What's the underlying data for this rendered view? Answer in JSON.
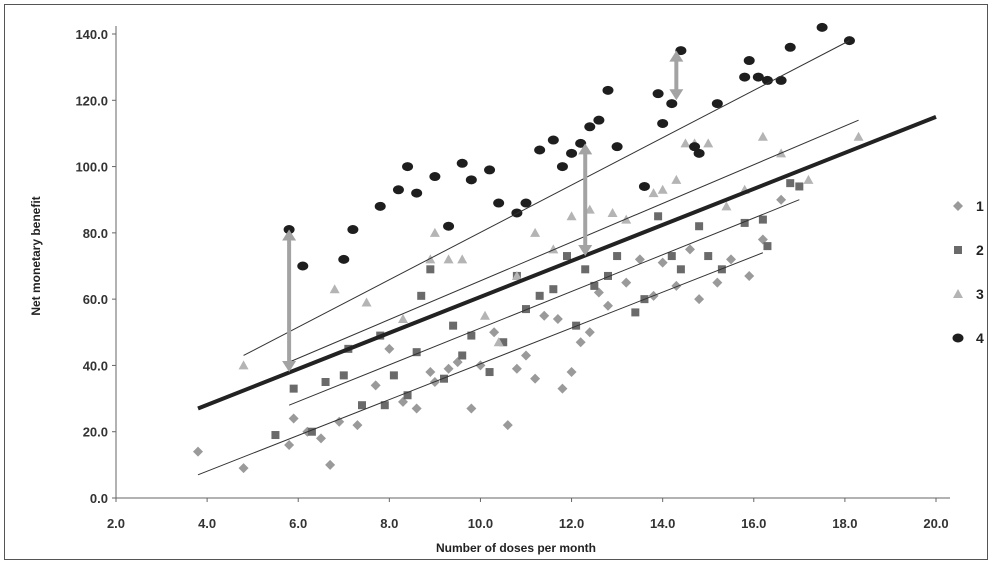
{
  "chart_data": {
    "type": "scatter",
    "title": "",
    "xlabel": "Number of doses per month",
    "ylabel": "Net monetary benefit",
    "xlim": [
      2.0,
      20.0
    ],
    "ylim": [
      0.0,
      140.0
    ],
    "xticks": [
      "2.0",
      "4.0",
      "6.0",
      "8.0",
      "10.0",
      "12.0",
      "14.0",
      "16.0",
      "18.0",
      "20.0"
    ],
    "yticks": [
      "0.0",
      "20.0",
      "40.0",
      "60.0",
      "80.0",
      "100.0",
      "120.0",
      "140.0"
    ],
    "grid": false,
    "legend_position": "right",
    "series": [
      {
        "name": "1",
        "marker": "diamond",
        "color": "#9a9a9a",
        "points": [
          [
            3.8,
            14
          ],
          [
            4.8,
            9
          ],
          [
            5.8,
            16
          ],
          [
            5.9,
            24
          ],
          [
            6.2,
            20
          ],
          [
            6.5,
            18
          ],
          [
            6.7,
            10
          ],
          [
            6.9,
            23
          ],
          [
            7.3,
            22
          ],
          [
            7.7,
            34
          ],
          [
            8.0,
            45
          ],
          [
            8.3,
            29
          ],
          [
            8.6,
            27
          ],
          [
            8.9,
            38
          ],
          [
            9.0,
            35
          ],
          [
            9.3,
            39
          ],
          [
            9.5,
            41
          ],
          [
            9.8,
            27
          ],
          [
            10.0,
            40
          ],
          [
            10.3,
            50
          ],
          [
            10.6,
            22
          ],
          [
            10.8,
            39
          ],
          [
            11.0,
            43
          ],
          [
            11.2,
            36
          ],
          [
            11.4,
            55
          ],
          [
            11.7,
            54
          ],
          [
            11.8,
            33
          ],
          [
            12.0,
            38
          ],
          [
            12.2,
            47
          ],
          [
            12.4,
            50
          ],
          [
            12.6,
            62
          ],
          [
            12.8,
            58
          ],
          [
            13.2,
            65
          ],
          [
            13.5,
            72
          ],
          [
            13.8,
            61
          ],
          [
            14.0,
            71
          ],
          [
            14.3,
            64
          ],
          [
            14.6,
            75
          ],
          [
            14.8,
            60
          ],
          [
            15.2,
            65
          ],
          [
            15.5,
            72
          ],
          [
            15.9,
            67
          ],
          [
            16.2,
            78
          ],
          [
            16.6,
            90
          ]
        ]
      },
      {
        "name": "2",
        "marker": "square",
        "color": "#6a6a6a",
        "points": [
          [
            5.5,
            19
          ],
          [
            5.9,
            33
          ],
          [
            6.3,
            20
          ],
          [
            6.6,
            35
          ],
          [
            7.0,
            37
          ],
          [
            7.1,
            45
          ],
          [
            7.4,
            28
          ],
          [
            7.8,
            49
          ],
          [
            7.9,
            28
          ],
          [
            8.1,
            37
          ],
          [
            8.4,
            31
          ],
          [
            8.6,
            44
          ],
          [
            8.7,
            61
          ],
          [
            8.9,
            69
          ],
          [
            9.2,
            36
          ],
          [
            9.4,
            52
          ],
          [
            9.6,
            43
          ],
          [
            9.8,
            49
          ],
          [
            10.2,
            38
          ],
          [
            10.5,
            47
          ],
          [
            10.8,
            67
          ],
          [
            11.0,
            57
          ],
          [
            11.3,
            61
          ],
          [
            11.6,
            63
          ],
          [
            11.9,
            73
          ],
          [
            12.1,
            52
          ],
          [
            12.3,
            69
          ],
          [
            12.5,
            64
          ],
          [
            12.8,
            67
          ],
          [
            13.0,
            73
          ],
          [
            13.4,
            56
          ],
          [
            13.6,
            60
          ],
          [
            13.9,
            85
          ],
          [
            14.2,
            73
          ],
          [
            14.4,
            69
          ],
          [
            14.8,
            82
          ],
          [
            15.0,
            73
          ],
          [
            15.3,
            69
          ],
          [
            15.8,
            83
          ],
          [
            16.2,
            84
          ],
          [
            16.3,
            76
          ],
          [
            16.8,
            95
          ],
          [
            17.0,
            94
          ]
        ]
      },
      {
        "name": "3",
        "marker": "triangle",
        "color": "#b4b4b4",
        "points": [
          [
            4.8,
            40
          ],
          [
            6.8,
            63
          ],
          [
            7.5,
            59
          ],
          [
            8.3,
            54
          ],
          [
            8.9,
            72
          ],
          [
            9.0,
            80
          ],
          [
            9.3,
            72
          ],
          [
            9.6,
            72
          ],
          [
            10.1,
            55
          ],
          [
            10.4,
            47
          ],
          [
            10.8,
            67
          ],
          [
            11.2,
            80
          ],
          [
            11.6,
            75
          ],
          [
            12.0,
            85
          ],
          [
            12.4,
            87
          ],
          [
            12.9,
            86
          ],
          [
            13.2,
            84
          ],
          [
            13.8,
            92
          ],
          [
            14.0,
            93
          ],
          [
            14.3,
            96
          ],
          [
            14.5,
            107
          ],
          [
            14.7,
            107
          ],
          [
            15.0,
            107
          ],
          [
            15.4,
            88
          ],
          [
            15.8,
            93
          ],
          [
            16.2,
            109
          ],
          [
            16.6,
            104
          ],
          [
            17.2,
            96
          ],
          [
            18.3,
            109
          ]
        ]
      },
      {
        "name": "4",
        "marker": "circle",
        "color": "#1e1e1e",
        "points": [
          [
            5.8,
            81
          ],
          [
            6.1,
            70
          ],
          [
            7.0,
            72
          ],
          [
            7.2,
            81
          ],
          [
            7.8,
            88
          ],
          [
            8.2,
            93
          ],
          [
            8.4,
            100
          ],
          [
            8.6,
            92
          ],
          [
            9.0,
            97
          ],
          [
            9.3,
            82
          ],
          [
            9.6,
            101
          ],
          [
            9.8,
            96
          ],
          [
            10.2,
            99
          ],
          [
            10.4,
            89
          ],
          [
            10.8,
            86
          ],
          [
            11.0,
            89
          ],
          [
            11.3,
            105
          ],
          [
            11.6,
            108
          ],
          [
            11.8,
            100
          ],
          [
            12.0,
            104
          ],
          [
            12.2,
            107
          ],
          [
            12.4,
            112
          ],
          [
            12.6,
            114
          ],
          [
            12.8,
            123
          ],
          [
            13.0,
            106
          ],
          [
            13.6,
            94
          ],
          [
            13.9,
            122
          ],
          [
            14.0,
            113
          ],
          [
            14.2,
            119
          ],
          [
            14.4,
            135
          ],
          [
            14.7,
            106
          ],
          [
            14.8,
            104
          ],
          [
            15.2,
            119
          ],
          [
            15.8,
            127
          ],
          [
            15.9,
            132
          ],
          [
            16.1,
            127
          ],
          [
            16.3,
            126
          ],
          [
            16.6,
            126
          ],
          [
            16.8,
            136
          ],
          [
            17.5,
            142
          ],
          [
            18.1,
            138
          ]
        ]
      }
    ],
    "fit_lines": [
      {
        "name": "overall",
        "weight": "bold",
        "from": [
          3.8,
          27
        ],
        "to": [
          20.0,
          115
        ]
      },
      {
        "name": "4",
        "weight": "thin",
        "from": [
          4.8,
          43
        ],
        "to": [
          18.1,
          138
        ]
      },
      {
        "name": "3",
        "weight": "thin",
        "from": [
          5.8,
          41
        ],
        "to": [
          18.3,
          114
        ]
      },
      {
        "name": "2",
        "weight": "thin",
        "from": [
          5.8,
          28
        ],
        "to": [
          17.0,
          90
        ]
      },
      {
        "name": "1",
        "weight": "thin",
        "from": [
          3.8,
          7
        ],
        "to": [
          16.2,
          74
        ]
      }
    ],
    "arrows": [
      {
        "x": 5.8,
        "y_from": 38,
        "y_to": 81
      },
      {
        "x": 12.3,
        "y_from": 73,
        "y_to": 107
      },
      {
        "x": 14.3,
        "y_from": 120,
        "y_to": 135
      }
    ],
    "legend": [
      "1",
      "2",
      "3",
      "4"
    ]
  }
}
